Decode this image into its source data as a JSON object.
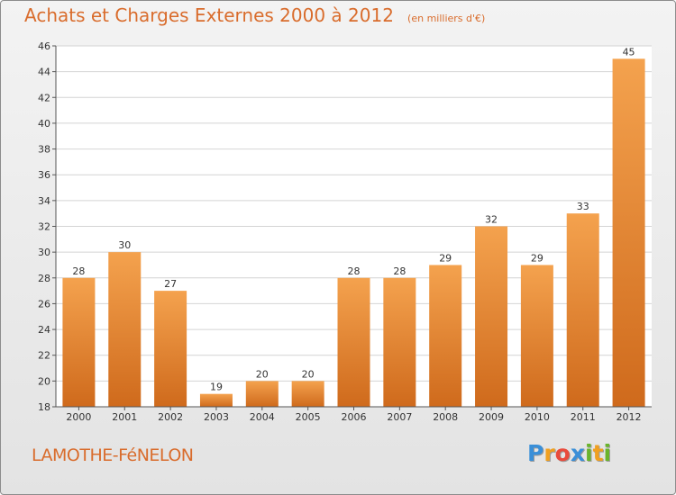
{
  "title": "Achats et Charges Externes 2000 à 2012",
  "subtitle": "(en milliers d'€)",
  "town": "LAMOTHE-FéNELON",
  "logo": {
    "text": "Proxiti",
    "letters": [
      {
        "char": "P",
        "color": "#3a8fd8"
      },
      {
        "char": "r",
        "color": "#f0a020"
      },
      {
        "char": "o",
        "color": "#e94b3c"
      },
      {
        "char": "x",
        "color": "#3a8fd8"
      },
      {
        "char": "i",
        "color": "#6ab42c"
      },
      {
        "char": "t",
        "color": "#f0a020"
      },
      {
        "char": "i",
        "color": "#6ab42c"
      }
    ]
  },
  "colors": {
    "accent": "#d96c2c",
    "bar_light": "#f4a24e",
    "bar_dark": "#cf6a1c",
    "axis": "#555555",
    "grid": "#d4d4d4"
  },
  "chart_data": {
    "type": "bar",
    "title": "Achats et Charges Externes 2000 à 2012",
    "subtitle": "(en milliers d'€)",
    "categories": [
      "2000",
      "2001",
      "2002",
      "2003",
      "2004",
      "2005",
      "2006",
      "2007",
      "2008",
      "2009",
      "2010",
      "2011",
      "2012"
    ],
    "values": [
      28,
      30,
      27,
      19,
      20,
      20,
      28,
      28,
      29,
      32,
      29,
      33,
      45
    ],
    "ylim": [
      18,
      46
    ],
    "yticks": [
      18,
      20,
      22,
      24,
      26,
      28,
      30,
      32,
      34,
      36,
      38,
      40,
      42,
      44,
      46
    ],
    "grid": true,
    "data_labels": true
  }
}
